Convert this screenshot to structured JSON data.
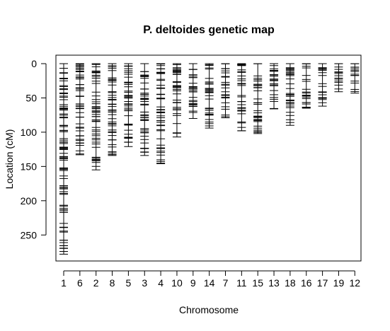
{
  "chart_data": {
    "type": "genetic-map",
    "title": "P. deltoides genetic map",
    "xlabel": "Chromosome",
    "ylabel": "Location (cM)",
    "ylim": [
      0,
      290
    ],
    "y_reversed": true,
    "yticks": [
      0,
      50,
      100,
      150,
      200,
      250
    ],
    "grid": false,
    "legend": "none",
    "chromosomes": [
      {
        "name": "1",
        "length": 278
      },
      {
        "name": "6",
        "length": 133
      },
      {
        "name": "2",
        "length": 155
      },
      {
        "name": "8",
        "length": 134
      },
      {
        "name": "5",
        "length": 121
      },
      {
        "name": "3",
        "length": 134
      },
      {
        "name": "4",
        "length": 146
      },
      {
        "name": "10",
        "length": 107
      },
      {
        "name": "9",
        "length": 80
      },
      {
        "name": "14",
        "length": 94
      },
      {
        "name": "7",
        "length": 79
      },
      {
        "name": "11",
        "length": 98
      },
      {
        "name": "15",
        "length": 102
      },
      {
        "name": "13",
        "length": 66
      },
      {
        "name": "18",
        "length": 90
      },
      {
        "name": "16",
        "length": 65
      },
      {
        "name": "17",
        "length": 62
      },
      {
        "name": "19",
        "length": 41
      },
      {
        "name": "12",
        "length": 43
      }
    ]
  }
}
